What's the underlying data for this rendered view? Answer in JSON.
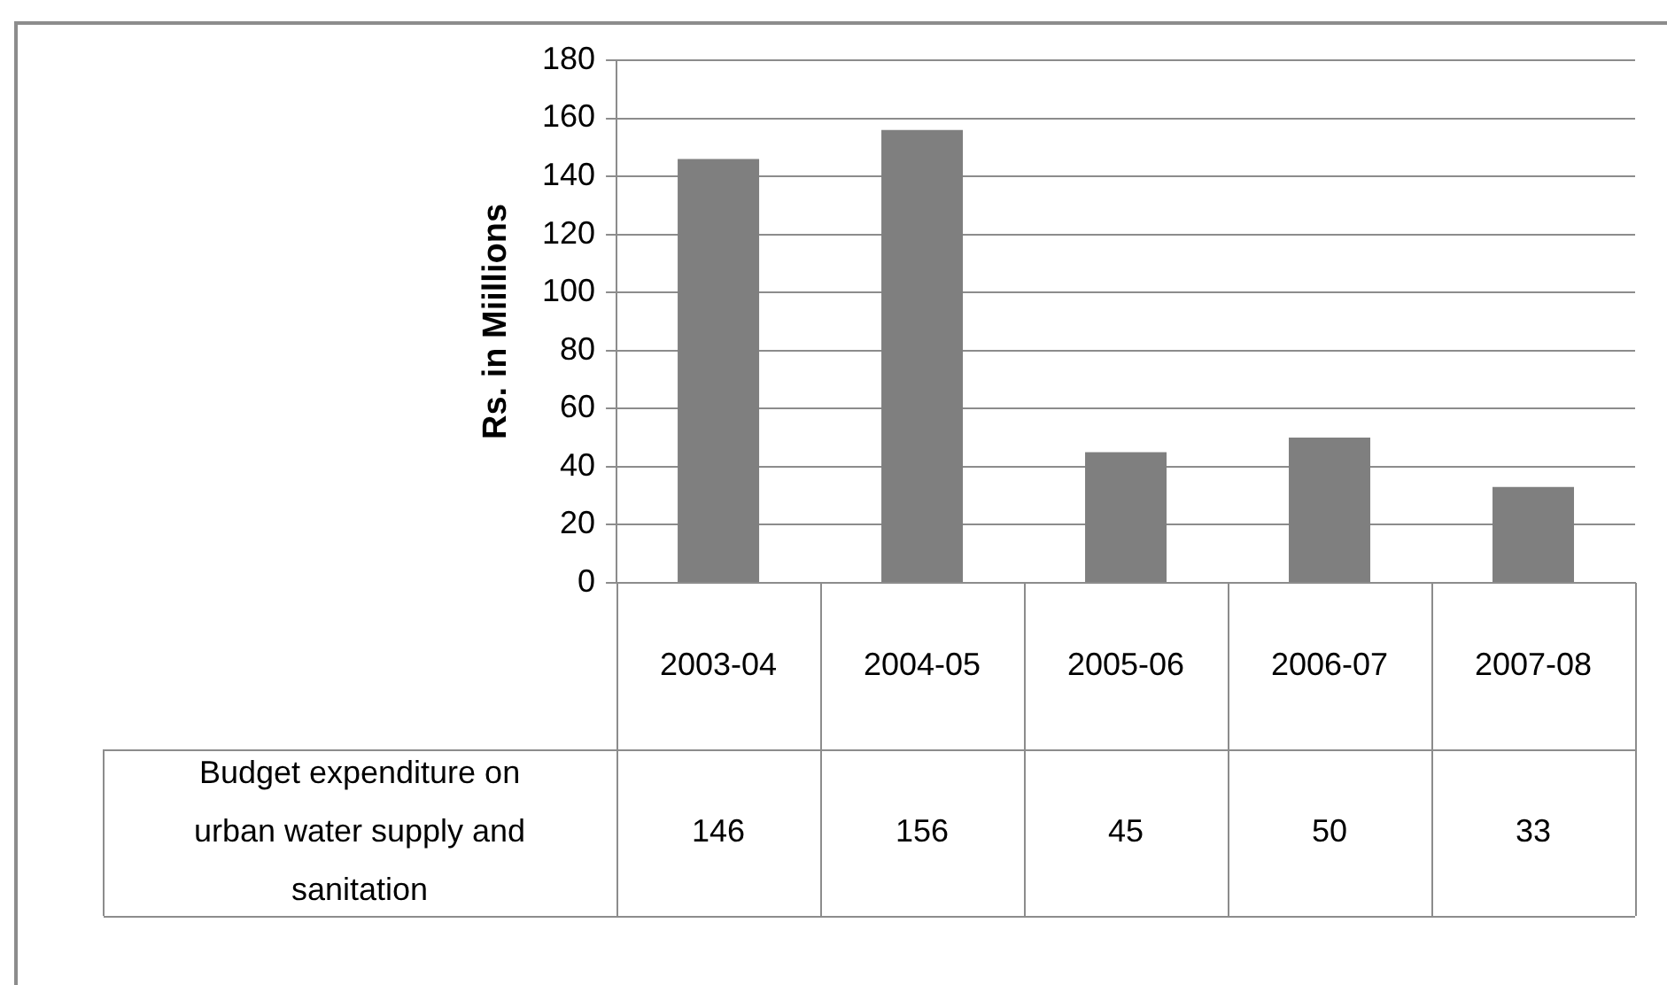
{
  "chart_data": {
    "type": "bar",
    "ylabel": "Rs. in Miillions",
    "categories": [
      "2003-04",
      "2004-05",
      "2005-06",
      "2006-07",
      "2007-08"
    ],
    "series": [
      {
        "name": "Budget expenditure on urban water supply and sanitation",
        "color": "#7f7f7f",
        "values": [
          146,
          156,
          45,
          50,
          33
        ]
      }
    ],
    "ylim": [
      0,
      180
    ],
    "yticks": [
      0,
      20,
      40,
      60,
      80,
      100,
      120,
      140,
      160,
      180
    ],
    "grid": "y",
    "data_labels": true
  }
}
